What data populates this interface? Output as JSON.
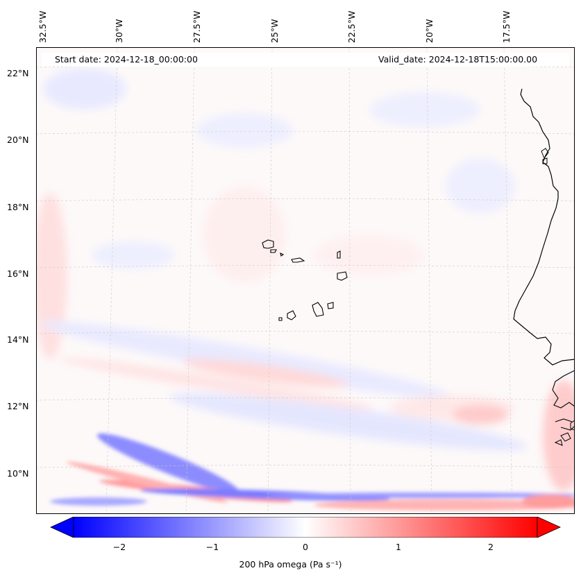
{
  "map": {
    "longitude_labels": [
      "32.5°W",
      "30°W",
      "27.5°W",
      "25°W",
      "22.5°W",
      "20°W",
      "17.5°W"
    ],
    "latitude_labels": [
      "22°N",
      "20°N",
      "18°N",
      "16°N",
      "14°N",
      "12°N",
      "10°N"
    ],
    "start_date": "Start date: 2024-12-18_00:00:00",
    "valid_date": "Valid_date: 2024-12-18T15:00:00.00",
    "coastline_color": "#000000",
    "grid_color": "#c8c8c8"
  },
  "colorbar": {
    "ticks": [
      "−2",
      "−1",
      "0",
      "1",
      "2"
    ],
    "tick_values": [
      -2,
      -1,
      0,
      1,
      2
    ],
    "range": [
      -2.6,
      2.6
    ],
    "label": "200 hPa omega (Pa s⁻¹)",
    "colormap": "bwr",
    "low_color": "#0000ff",
    "mid_color": "#ffffff",
    "high_color": "#ff0000"
  }
}
